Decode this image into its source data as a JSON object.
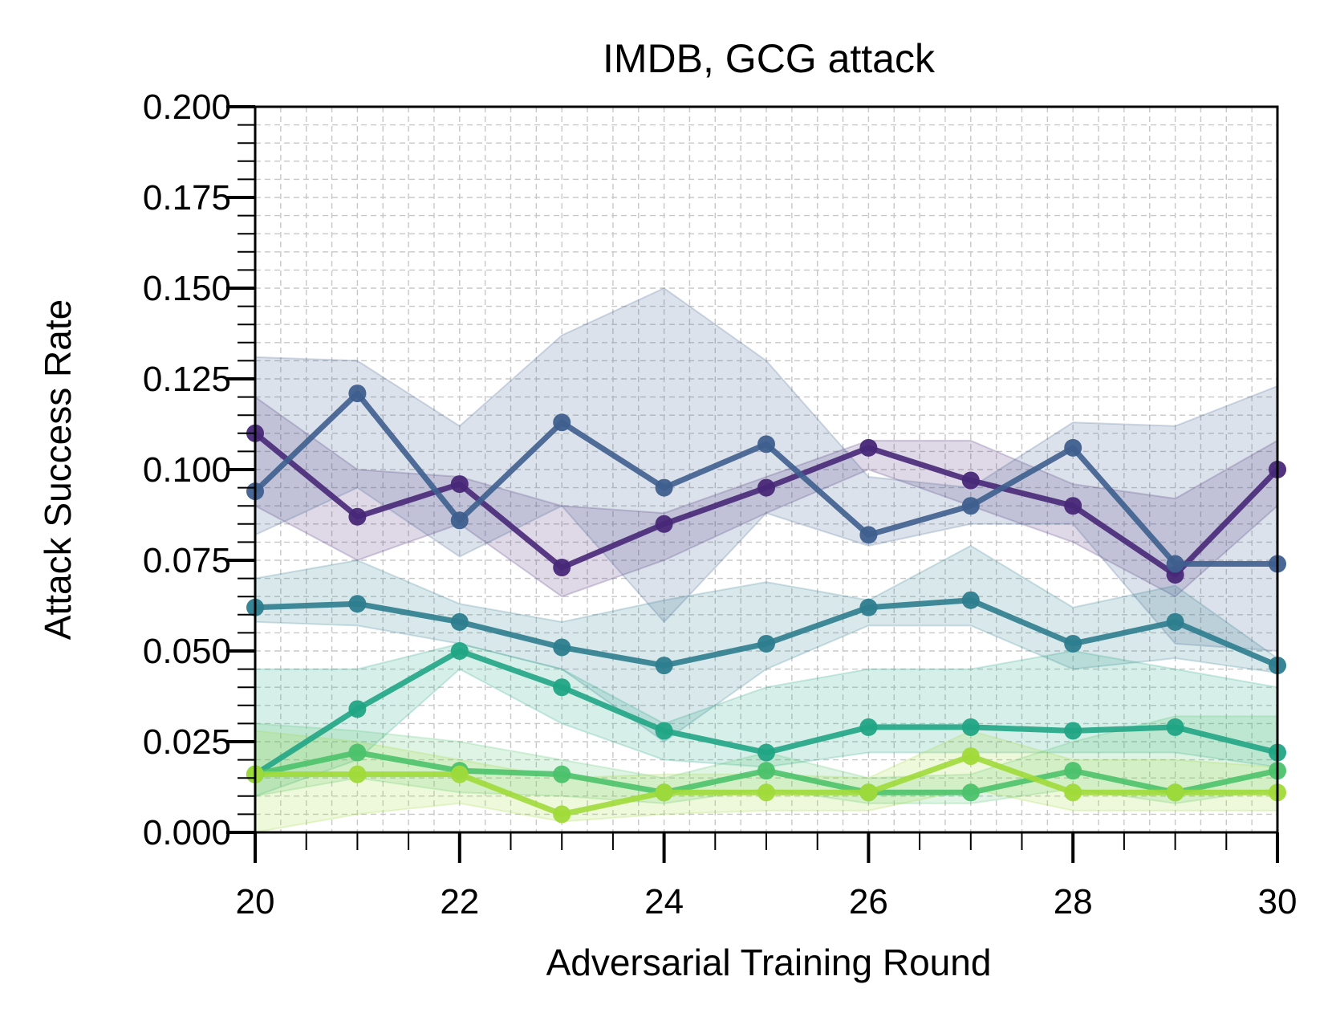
{
  "chart_data": {
    "type": "line",
    "title": "IMDB, GCG attack",
    "xlabel": "Adversarial Training Round",
    "ylabel": "Attack Success Rate",
    "xlim": [
      20,
      30
    ],
    "ylim": [
      0,
      0.2
    ],
    "xticks": [
      20,
      22,
      24,
      26,
      28,
      30
    ],
    "xtick_labels": [
      "20",
      "22",
      "24",
      "26",
      "28",
      "30"
    ],
    "yticks": [
      0,
      0.025,
      0.05,
      0.075,
      0.1,
      0.125,
      0.15,
      0.175,
      0.2
    ],
    "ytick_labels": [
      "0.000",
      "0.025",
      "0.050",
      "0.075",
      "0.100",
      "0.125",
      "0.150",
      "0.175",
      "0.200"
    ],
    "grid": true,
    "legend": "none",
    "x": [
      20,
      21,
      22,
      23,
      24,
      25,
      26,
      27,
      28,
      29,
      30
    ],
    "series": [
      {
        "color": "#482878",
        "values": [
          0.11,
          0.087,
          0.096,
          0.073,
          0.085,
          0.095,
          0.106,
          0.097,
          0.09,
          0.071,
          0.1
        ],
        "lower": [
          0.09,
          0.075,
          0.085,
          0.065,
          0.075,
          0.088,
          0.1,
          0.09,
          0.08,
          0.065,
          0.09
        ],
        "upper": [
          0.12,
          0.1,
          0.098,
          0.09,
          0.088,
          0.098,
          0.108,
          0.108,
          0.096,
          0.092,
          0.108
        ]
      },
      {
        "color": "#3e5f8e",
        "values": [
          0.094,
          0.121,
          0.086,
          0.113,
          0.095,
          0.107,
          0.082,
          0.09,
          0.106,
          0.074,
          0.074
        ],
        "lower": [
          0.082,
          0.095,
          0.076,
          0.09,
          0.058,
          0.088,
          0.079,
          0.085,
          0.085,
          0.052,
          0.05
        ],
        "upper": [
          0.131,
          0.13,
          0.112,
          0.137,
          0.15,
          0.13,
          0.098,
          0.095,
          0.113,
          0.112,
          0.123
        ]
      },
      {
        "color": "#2c7d8e",
        "values": [
          0.062,
          0.063,
          0.058,
          0.051,
          0.046,
          0.052,
          0.062,
          0.064,
          0.052,
          0.058,
          0.046
        ],
        "lower": [
          0.058,
          0.057,
          0.052,
          0.045,
          0.025,
          0.045,
          0.057,
          0.057,
          0.045,
          0.048,
          0.044
        ],
        "upper": [
          0.07,
          0.075,
          0.063,
          0.058,
          0.064,
          0.069,
          0.064,
          0.079,
          0.062,
          0.068,
          0.048
        ]
      },
      {
        "color": "#21a585",
        "values": [
          0.016,
          0.034,
          0.05,
          0.04,
          0.028,
          0.022,
          0.029,
          0.029,
          0.028,
          0.029,
          0.022
        ],
        "lower": [
          0.01,
          0.02,
          0.045,
          0.03,
          0.02,
          0.018,
          0.022,
          0.022,
          0.022,
          0.022,
          0.018
        ],
        "upper": [
          0.045,
          0.045,
          0.052,
          0.045,
          0.03,
          0.04,
          0.045,
          0.045,
          0.05,
          0.045,
          0.04
        ]
      },
      {
        "color": "#4cc26c",
        "values": [
          0.016,
          0.022,
          0.017,
          0.016,
          0.011,
          0.017,
          0.011,
          0.011,
          0.017,
          0.011,
          0.017
        ],
        "lower": [
          0.01,
          0.015,
          0.011,
          0.01,
          0.008,
          0.012,
          0.008,
          0.008,
          0.012,
          0.008,
          0.012
        ],
        "upper": [
          0.03,
          0.028,
          0.025,
          0.02,
          0.015,
          0.022,
          0.015,
          0.016,
          0.025,
          0.032,
          0.032
        ]
      },
      {
        "color": "#a0da39",
        "values": [
          0.016,
          0.016,
          0.016,
          0.005,
          0.011,
          0.011,
          0.011,
          0.021,
          0.011,
          0.011,
          0.011
        ],
        "lower": [
          0.0,
          0.005,
          0.008,
          0.003,
          0.005,
          0.006,
          0.006,
          0.012,
          0.006,
          0.006,
          0.006
        ],
        "upper": [
          0.028,
          0.025,
          0.02,
          0.015,
          0.016,
          0.016,
          0.015,
          0.028,
          0.02,
          0.02,
          0.018
        ]
      }
    ]
  }
}
